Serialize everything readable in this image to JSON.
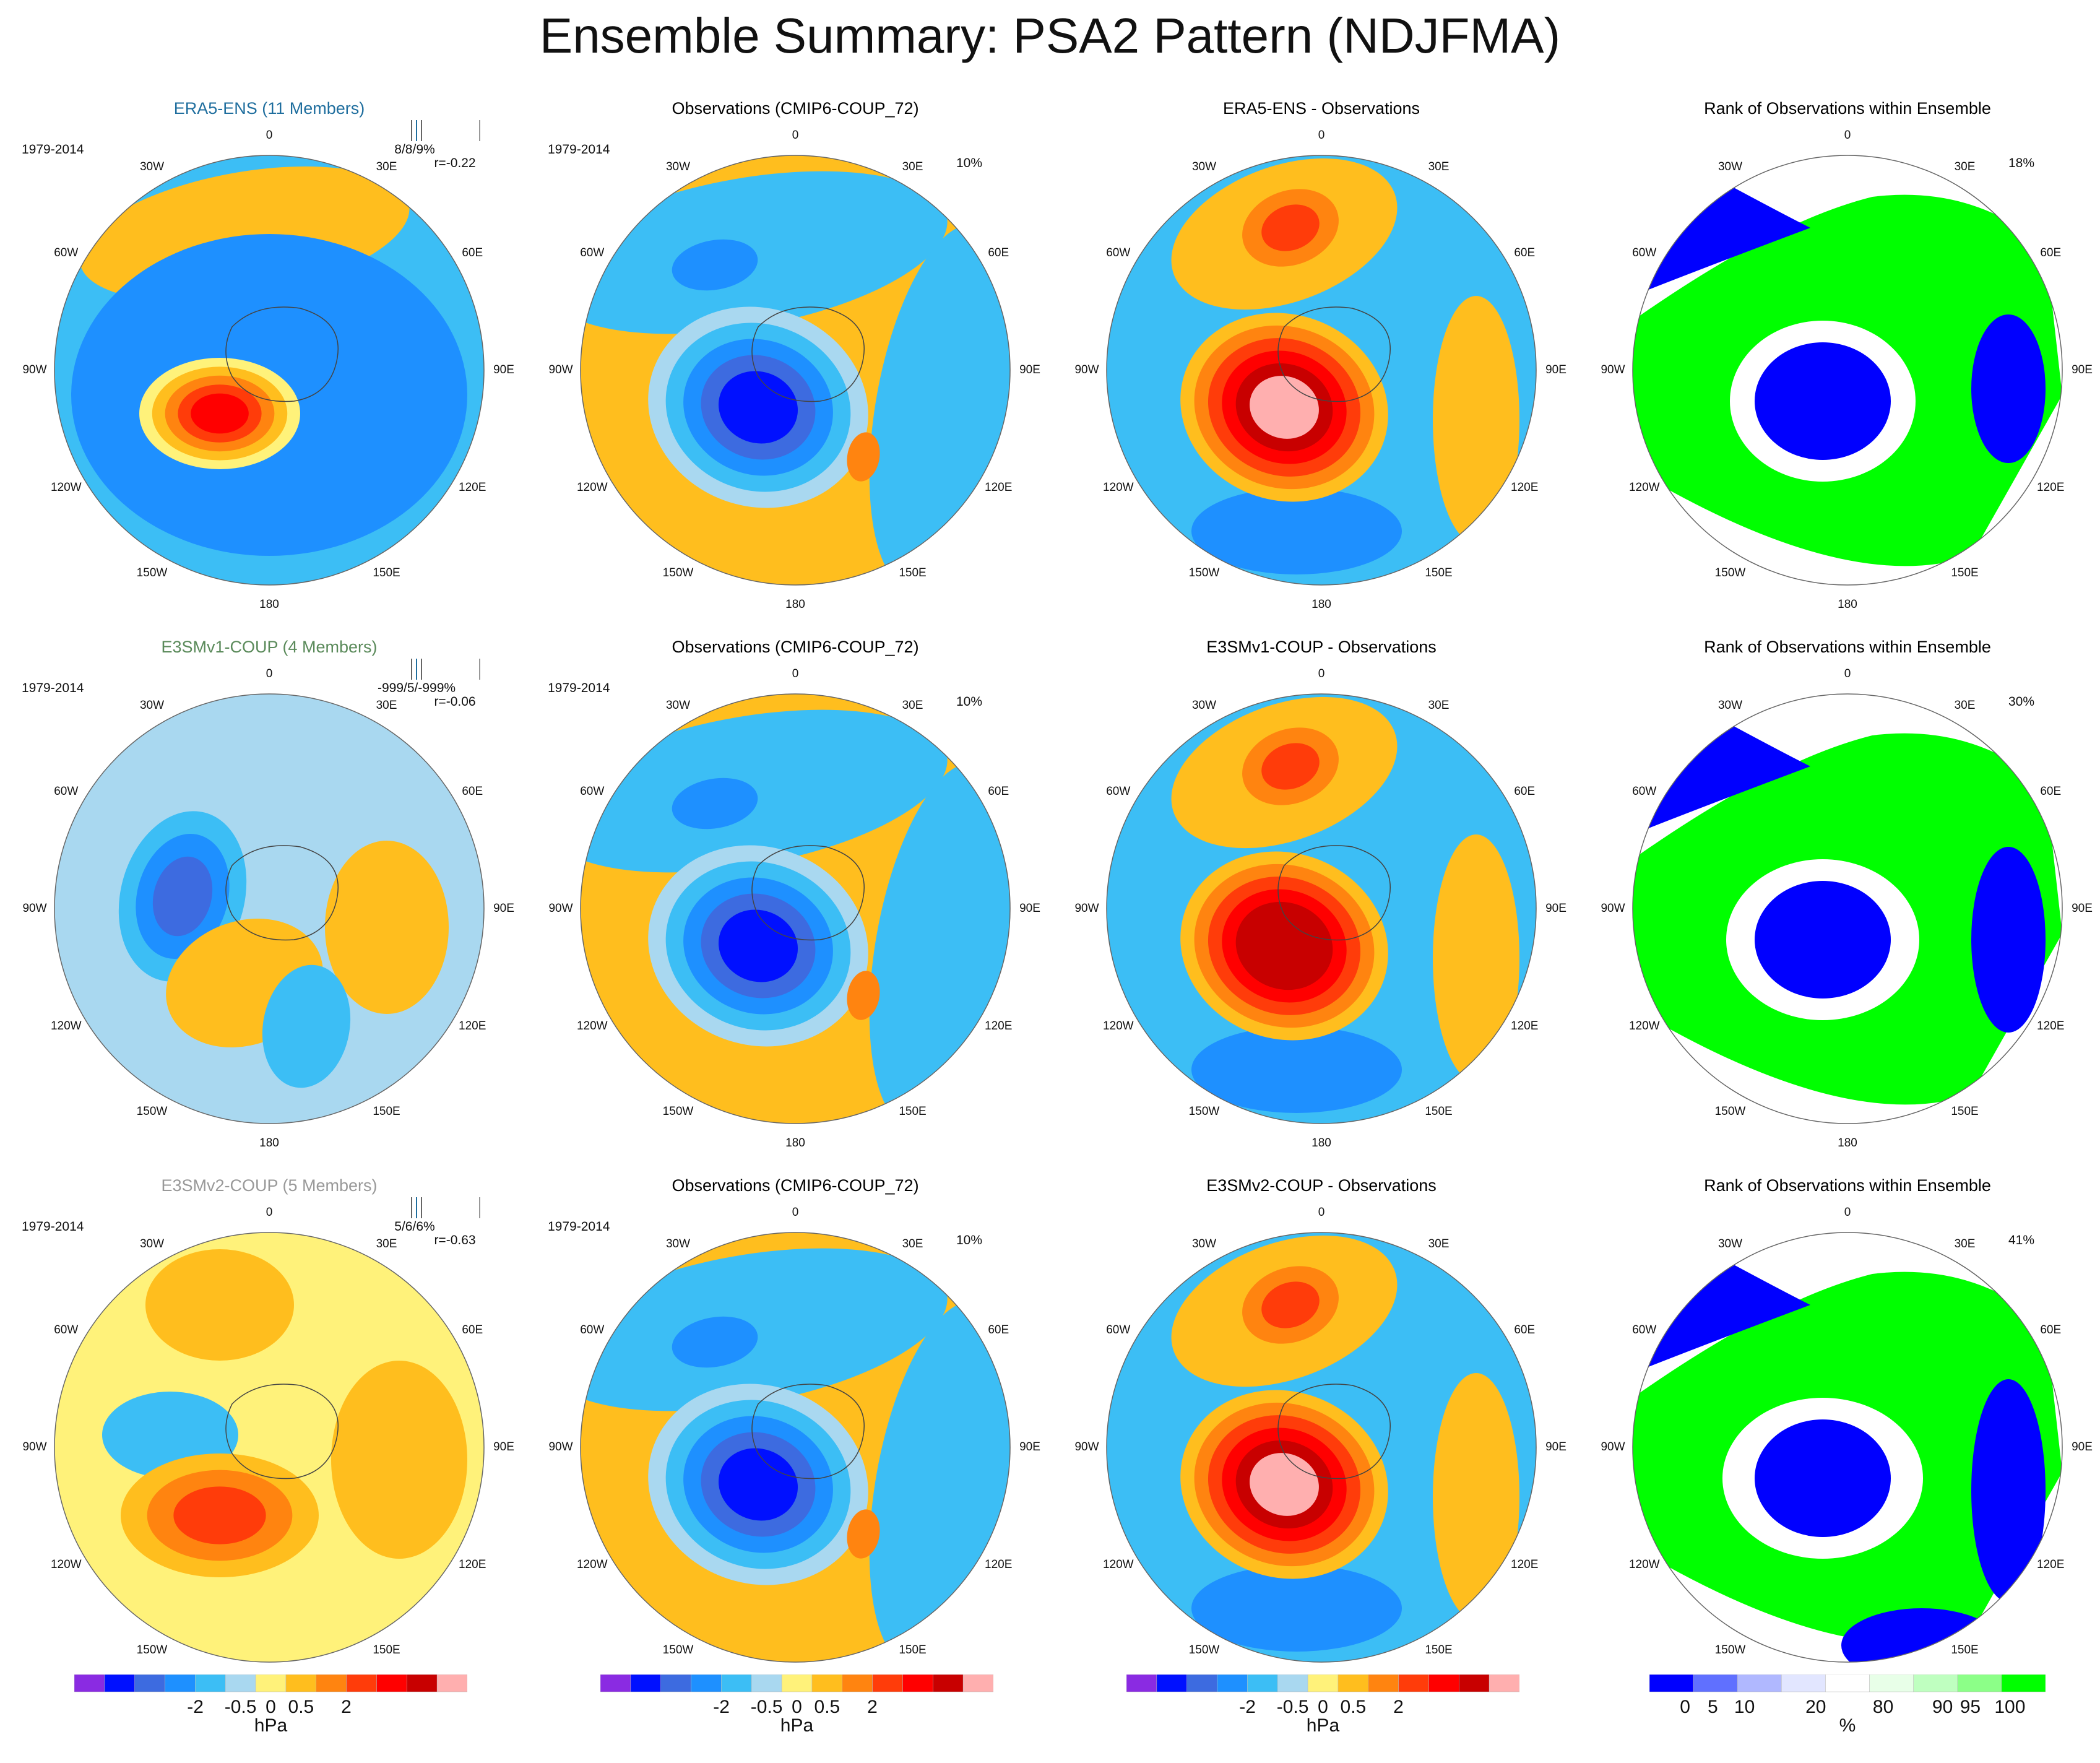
{
  "figure_title": "Ensemble Summary: PSA2 Pattern (NDJFMA)",
  "colors": {
    "anomaly_scale": [
      "#8A2BE2",
      "#0010FF",
      "#3D6BE0",
      "#1E90FF",
      "#3CBEF5",
      "#A9D8F0",
      "#FFF27A",
      "#FFBE1E",
      "#FF8410",
      "#FF3C0A",
      "#FF0000",
      "#C80000",
      "#FFAFAF"
    ],
    "rank_scale": [
      "#0000FF",
      "#6070FF",
      "#B0B8FF",
      "#E2E6FF",
      "#FFFFFF",
      "#E8FFE8",
      "#BFFFC0",
      "#8CFF88",
      "#00FF00"
    ],
    "title_ensemble_row1": "#1F6E9E",
    "title_ensemble_row2": "#5A8A5A",
    "title_ensemble_row3": "#999999"
  },
  "lon_labels": [
    "0",
    "30E",
    "60E",
    "90E",
    "120E",
    "150E",
    "180",
    "150W",
    "120W",
    "90W",
    "60W",
    "30W"
  ],
  "rows": [
    {
      "ensemble": {
        "title": "ERA5-ENS (11 Members)",
        "period": "1979-2014",
        "stat1": "8/8/9%",
        "stat2": "r=-0.22"
      },
      "obs": {
        "title": "Observations (CMIP6-COUP_72)",
        "period": "1979-2014",
        "pct": "10%"
      },
      "diff": {
        "title": "ERA5-ENS - Observations"
      },
      "rank": {
        "title": "Rank of Observations within Ensemble",
        "pct": "18%"
      }
    },
    {
      "ensemble": {
        "title": "E3SMv1-COUP (4 Members)",
        "period": "1979-2014",
        "stat1": "-999/5/-999%",
        "stat2": "r=-0.06"
      },
      "obs": {
        "title": "Observations (CMIP6-COUP_72)",
        "period": "1979-2014",
        "pct": "10%"
      },
      "diff": {
        "title": "E3SMv1-COUP - Observations"
      },
      "rank": {
        "title": "Rank of Observations within Ensemble",
        "pct": "30%"
      }
    },
    {
      "ensemble": {
        "title": "E3SMv2-COUP (5 Members)",
        "period": "1979-2014",
        "stat1": "5/6/6%",
        "stat2": "r=-0.63"
      },
      "obs": {
        "title": "Observations (CMIP6-COUP_72)",
        "period": "1979-2014",
        "pct": "10%"
      },
      "diff": {
        "title": "E3SMv2-COUP - Observations"
      },
      "rank": {
        "title": "Rank of Observations within Ensemble",
        "pct": "41%"
      }
    }
  ],
  "colorbars": {
    "anomaly": {
      "ticks": [
        "-2",
        "-0.5",
        "0",
        "0.5",
        "2"
      ],
      "unit": "hPa"
    },
    "rank": {
      "ticks": [
        "0",
        "5",
        "10",
        "20",
        "80",
        "90",
        "95",
        "100"
      ],
      "unit": "%"
    }
  },
  "chart_data": {
    "type": "heatmap",
    "title": "Ensemble Summary: PSA2 Pattern (NDJFMA)",
    "projection": "south polar stereographic",
    "units": "hPa",
    "contour_levels_hPa": [
      -2,
      -0.5,
      0,
      0.5,
      2
    ],
    "rank_levels_percent": [
      0,
      5,
      10,
      20,
      80,
      90,
      95,
      100
    ],
    "panels": [
      {
        "row": 1,
        "col": 1,
        "title": "ERA5-ENS (11 Members)",
        "stats": "8/8/9%",
        "r": -0.22
      },
      {
        "row": 1,
        "col": 2,
        "title": "Observations (CMIP6-COUP_72)",
        "pct": "10%"
      },
      {
        "row": 1,
        "col": 3,
        "title": "ERA5-ENS - Observations"
      },
      {
        "row": 1,
        "col": 4,
        "title": "Rank of Observations within Ensemble",
        "pct": "18%"
      },
      {
        "row": 2,
        "col": 1,
        "title": "E3SMv1-COUP (4 Members)",
        "stats": "-999/5/-999%",
        "r": -0.06
      },
      {
        "row": 2,
        "col": 2,
        "title": "Observations (CMIP6-COUP_72)",
        "pct": "10%"
      },
      {
        "row": 2,
        "col": 3,
        "title": "E3SMv1-COUP - Observations"
      },
      {
        "row": 2,
        "col": 4,
        "title": "Rank of Observations within Ensemble",
        "pct": "30%"
      },
      {
        "row": 3,
        "col": 1,
        "title": "E3SMv2-COUP (5 Members)",
        "stats": "5/6/6%",
        "r": -0.63
      },
      {
        "row": 3,
        "col": 2,
        "title": "Observations (CMIP6-COUP_72)",
        "pct": "10%"
      },
      {
        "row": 3,
        "col": 3,
        "title": "E3SMv2-COUP - Observations"
      },
      {
        "row": 3,
        "col": 4,
        "title": "Rank of Observations within Ensemble",
        "pct": "41%"
      }
    ]
  }
}
